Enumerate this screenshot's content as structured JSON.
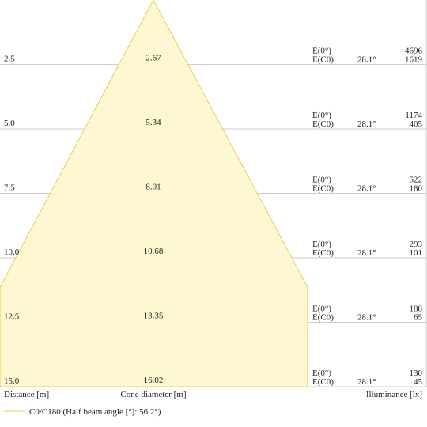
{
  "chart_data": {
    "type": "cone-diagram",
    "rows": [
      {
        "distance": "2.5",
        "diameter": "2.67",
        "e0_label": "E(0°)",
        "ec0_label": "E(C0)",
        "angle": "28.1°",
        "e0": "4696",
        "ec0": "1619"
      },
      {
        "distance": "5.0",
        "diameter": "5.34",
        "e0_label": "E(0°)",
        "ec0_label": "E(C0)",
        "angle": "28.1°",
        "e0": "1174",
        "ec0": "405"
      },
      {
        "distance": "7.5",
        "diameter": "8.01",
        "e0_label": "E(0°)",
        "ec0_label": "E(C0)",
        "angle": "28.1°",
        "e0": "522",
        "ec0": "180"
      },
      {
        "distance": "10.0",
        "diameter": "10.68",
        "e0_label": "E(0°)",
        "ec0_label": "E(C0)",
        "angle": "28.1°",
        "e0": "293",
        "ec0": "101"
      },
      {
        "distance": "12.5",
        "diameter": "13.35",
        "e0_label": "E(0°)",
        "ec0_label": "E(C0)",
        "angle": "28.1°",
        "e0": "188",
        "ec0": "65"
      },
      {
        "distance": "15.0",
        "diameter": "16.02",
        "e0_label": "E(0°)",
        "ec0_label": "E(C0)",
        "angle": "28.1°",
        "e0": "130",
        "ec0": "45"
      }
    ],
    "half_beam_angle_deg": 56.2
  },
  "labels": {
    "distance": "Distance [m]",
    "cone_diameter": "Cone diameter [m]",
    "illuminance": "Illuminance [lx]",
    "legend": "C0/C180 (Half beam angle [°]: 56.2°)"
  },
  "colors": {
    "cone_fill": "#fdf8d2",
    "cone_stroke": "#f3c85a",
    "grid": "#cccccc"
  }
}
